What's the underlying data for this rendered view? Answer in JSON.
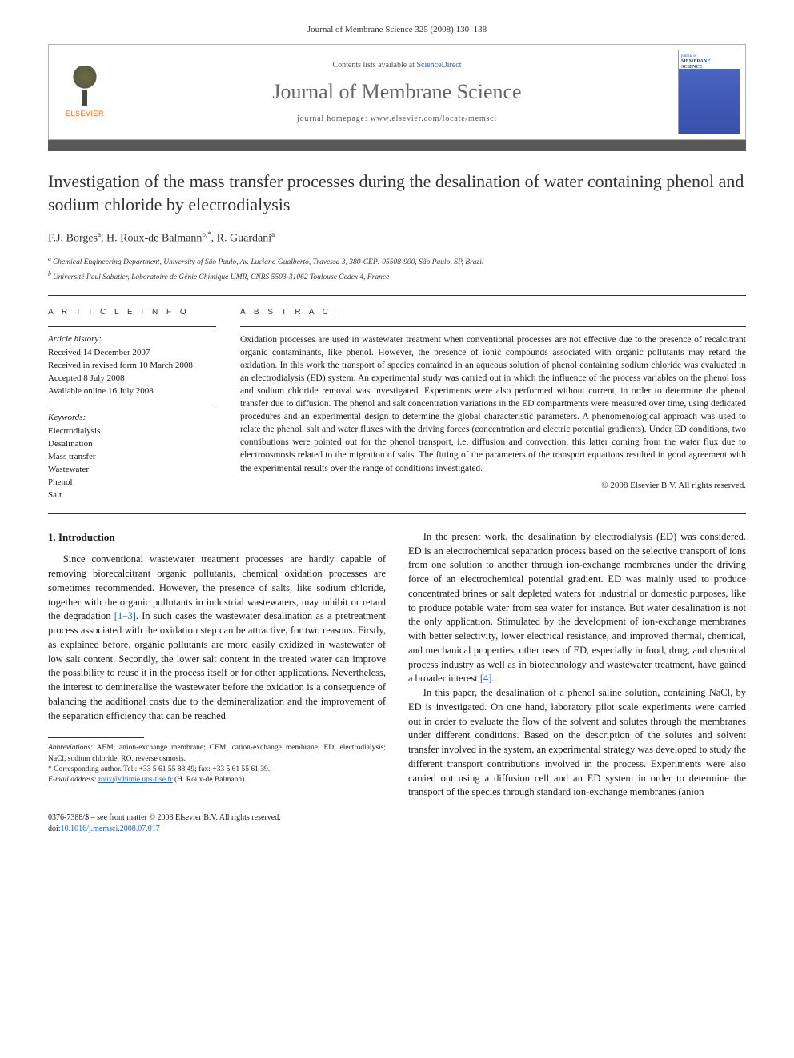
{
  "meta": {
    "header_citation": "Journal of Membrane Science 325 (2008) 130–138",
    "contents_prefix": "Contents lists available at ",
    "contents_link": "ScienceDirect",
    "journal_name": "Journal of Membrane Science",
    "homepage_prefix": "journal homepage: ",
    "homepage_url": "www.elsevier.com/locate/memsci",
    "publisher_logo": "ELSEVIER",
    "cover_small_top": "journal of",
    "cover_small_mid": "MEMBRANE",
    "cover_small_bot": "SCIENCE"
  },
  "title": "Investigation of the mass transfer processes during the desalination of water containing phenol and sodium chloride by electrodialysis",
  "authors_html": "F.J. Borges",
  "author1": {
    "name": "F.J. Borges",
    "sup": "a"
  },
  "author2": {
    "name": "H. Roux-de Balmann",
    "sup": "b,*"
  },
  "author3": {
    "name": "R. Guardani",
    "sup": "a"
  },
  "sep": ", ",
  "affiliations": {
    "a": "Chemical Engineering Department, University of São Paulo, Av. Luciano Gualberto, Travessa 3, 380-CEP: 05508-900, São Paulo, SP, Brazil",
    "b": "Université Paul Sabatier, Laboratoire de Génie Chimique UMR, CNRS 5503-31062 Toulouse Cedex 4, France",
    "a_sup": "a ",
    "b_sup": "b "
  },
  "info": {
    "head": "A R T I C L E   I N F O",
    "history_head": "Article history:",
    "received": "Received 14 December 2007",
    "revised": "Received in revised form 10 March 2008",
    "accepted": "Accepted 8 July 2008",
    "online": "Available online 16 July 2008",
    "keywords_head": "Keywords:",
    "kw1": "Electrodialysis",
    "kw2": "Desalination",
    "kw3": "Mass transfer",
    "kw4": "Wastewater",
    "kw5": "Phenol",
    "kw6": "Salt"
  },
  "abstract": {
    "head": "A B S T R A C T",
    "text": "Oxidation processes are used in wastewater treatment when conventional processes are not effective due to the presence of recalcitrant organic contaminants, like phenol. However, the presence of ionic compounds associated with organic pollutants may retard the oxidation. In this work the transport of species contained in an aqueous solution of phenol containing sodium chloride was evaluated in an electrodialysis (ED) system. An experimental study was carried out in which the influence of the process variables on the phenol loss and sodium chloride removal was investigated. Experiments were also performed without current, in order to determine the phenol transfer due to diffusion. The phenol and salt concentration variations in the ED compartments were measured over time, using dedicated procedures and an experimental design to determine the global characteristic parameters. A phenomenological approach was used to relate the phenol, salt and water fluxes with the driving forces (concentration and electric potential gradients). Under ED conditions, two contributions were pointed out for the phenol transport, i.e. diffusion and convection, this latter coming from the water flux due to electroosmosis related to the migration of salts. The fitting of the parameters of the transport equations resulted in good agreement with the experimental results over the range of conditions investigated.",
    "copyright": "© 2008 Elsevier B.V. All rights reserved."
  },
  "body": {
    "section_num": "1.",
    "section_title": " Introduction",
    "left_p1a": "Since conventional wastewater treatment processes are hardly capable of removing biorecalcitrant organic pollutants, chemical oxidation processes are sometimes recommended. However, the presence of salts, like sodium chloride, together with the organic pollutants in industrial wastewaters, may inhibit or retard the degradation ",
    "left_ref1": "[1–3]",
    "left_p1b": ". In such cases the wastewater desalination as a pretreatment process associated with the oxidation step can be attractive, for two reasons. Firstly, as explained before, organic pollutants are more easily oxidized in wastewater of low salt content. Secondly, the lower salt content in the treated water can improve the possibility to reuse it in the process itself or for other applications. Nevertheless, the interest to demineralise the wastewater before the oxidation is a consequence of balancing the additional costs due to the demineralization and the improvement of the separation efficiency that can be reached.",
    "right_p1a": "In the present work, the desalination by electrodialysis (ED) was considered. ED is an electrochemical separation process based on the selective transport of ions from one solution to another through ion-exchange membranes under the driving force of an electrochemical potential gradient. ED was mainly used to produce concentrated brines or salt depleted waters for industrial or domestic purposes, like to produce potable water from sea water for instance. But water desalination is not the only application. Stimulated by the development of ion-exchange membranes with better selectivity, lower electrical resistance, and improved thermal, chemical, and mechanical properties, other uses of ED, especially in food, drug, and chemical process industry as well as in biotechnology and wastewater treatment, have gained a broader interest ",
    "right_ref1": "[4]",
    "right_p1b": ".",
    "right_p2": "In this paper, the desalination of a phenol saline solution, containing NaCl, by ED is investigated. On one hand, laboratory pilot scale experiments were carried out in order to evaluate the flow of the solvent and solutes through the membranes under different conditions. Based on the description of the solutes and solvent transfer involved in the system, an experimental strategy was developed to study the different transport contributions involved in the process. Experiments were also carried out using a diffusion cell and an ED system in order to determine the transport of the species through standard ion-exchange membranes (anion"
  },
  "footnotes": {
    "abbrev_label": "Abbreviations:",
    "abbrev_text": " AEM, anion-exchange membrane; CEM, cation-exchange membrane; ED, electrodialysis; NaCl, sodium chloride; RO, reverse osmosis.",
    "corr_marker": "* ",
    "corr_text": "Corresponding author. Tel.: +33 5 61 55 88 49; fax: +33 5 61 55 61 39.",
    "email_label": "E-mail address: ",
    "email": "roux@chimie.ups-tlse.fr",
    "email_suffix": " (H. Roux-de Balmann)."
  },
  "footer": {
    "line1": "0376-7388/$ – see front matter © 2008 Elsevier B.V. All rights reserved.",
    "doi_prefix": "doi:",
    "doi": "10.1016/j.memsci.2008.07.017"
  },
  "colors": {
    "link": "#2060c0",
    "bar": "#585858",
    "elsevier_orange": "#ff6600",
    "cover_blue": "#3850a8"
  }
}
